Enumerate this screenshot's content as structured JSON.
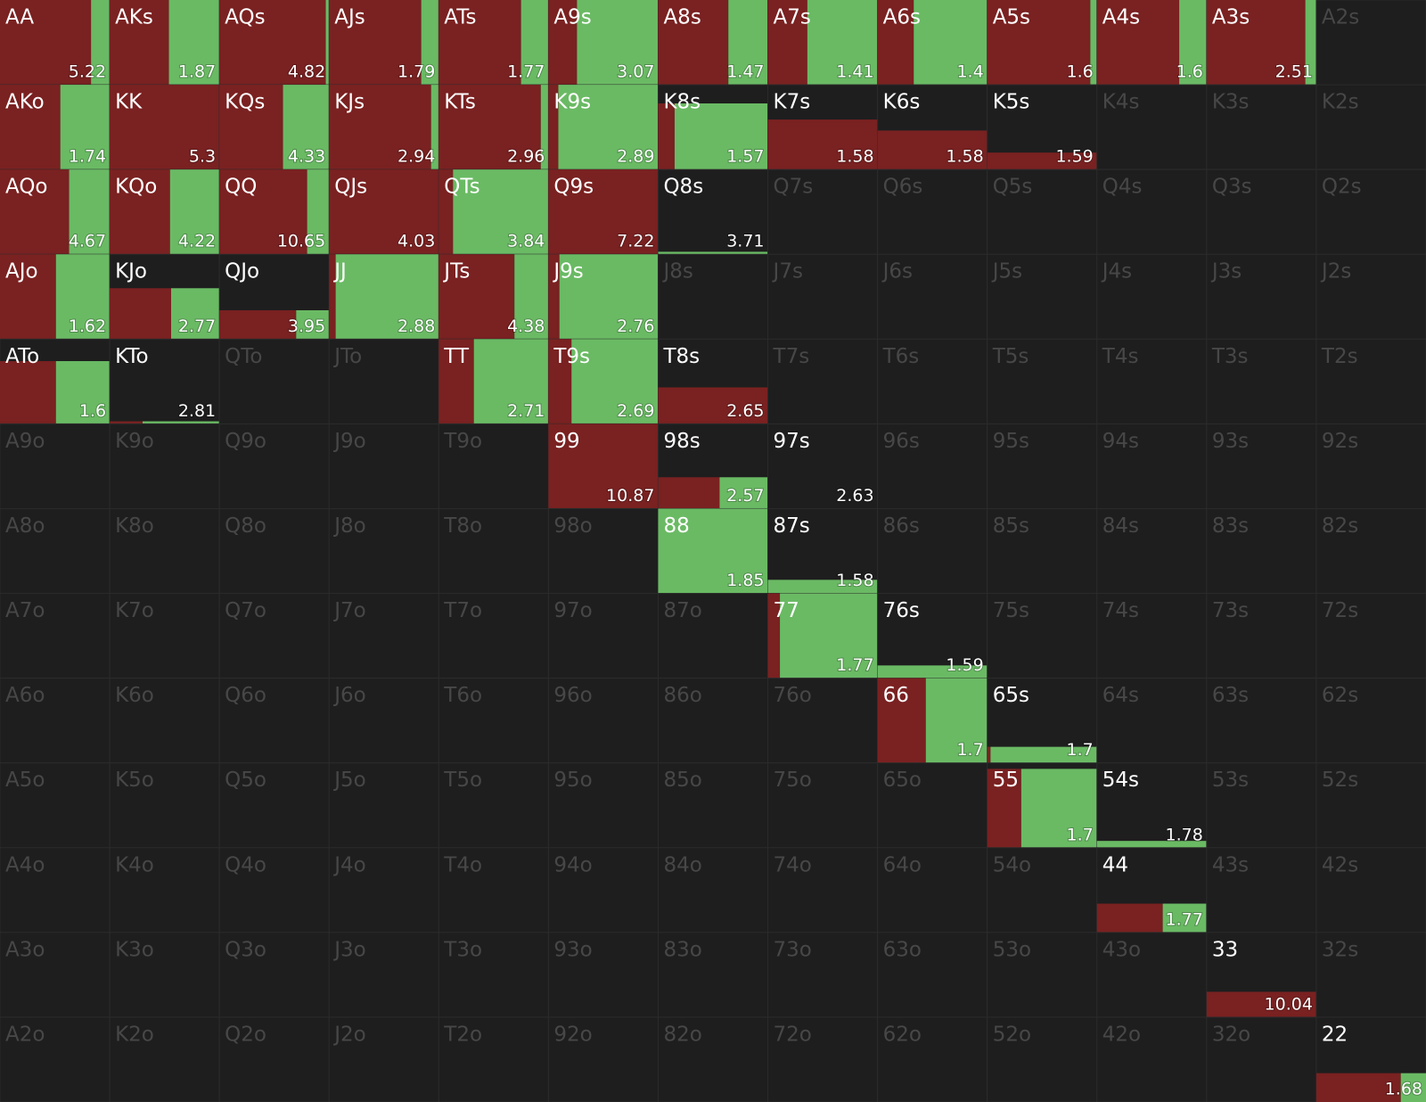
{
  "grid": {
    "rows": [
      [
        {
          "label": "AA",
          "value": 5.22,
          "height": 1,
          "red": 0.83
        },
        {
          "label": "AKs",
          "value": 1.87,
          "height": 1,
          "red": 0.54
        },
        {
          "label": "AQs",
          "value": 4.82,
          "height": 1,
          "red": 0.97
        },
        {
          "label": "AJs",
          "value": 1.79,
          "height": 1,
          "red": 0.84
        },
        {
          "label": "ATs",
          "value": 1.77,
          "height": 1,
          "red": 0.75
        },
        {
          "label": "A9s",
          "value": 3.07,
          "height": 1,
          "red": 0.26
        },
        {
          "label": "A8s",
          "value": 1.47,
          "height": 1,
          "red": 0.64
        },
        {
          "label": "A7s",
          "value": 1.41,
          "height": 1,
          "red": 0.36
        },
        {
          "label": "A6s",
          "value": 1.4,
          "height": 1,
          "red": 0.33
        },
        {
          "label": "A5s",
          "value": 1.6,
          "height": 1,
          "red": 0.94
        },
        {
          "label": "A4s",
          "value": 1.6,
          "height": 1,
          "red": 0.75
        },
        {
          "label": "A3s",
          "value": 2.51,
          "height": 1,
          "red": 0.9
        },
        {
          "label": "A2s"
        }
      ],
      [
        {
          "label": "AKo",
          "value": 1.74,
          "height": 1,
          "red": 0.55
        },
        {
          "label": "KK",
          "value": 5.3,
          "height": 1,
          "red": 1
        },
        {
          "label": "KQs",
          "value": 4.33,
          "height": 1,
          "red": 0.58
        },
        {
          "label": "KJs",
          "value": 2.94,
          "height": 1,
          "red": 0.93
        },
        {
          "label": "KTs",
          "value": 2.96,
          "height": 1,
          "red": 0.93
        },
        {
          "label": "K9s",
          "value": 2.89,
          "height": 1,
          "red": 0.09
        },
        {
          "label": "K8s",
          "value": 1.57,
          "height": 0.78,
          "red": 0.15
        },
        {
          "label": "K7s",
          "value": 1.58,
          "height": 0.59,
          "red": 1
        },
        {
          "label": "K6s",
          "value": 1.58,
          "height": 0.46,
          "red": 1
        },
        {
          "label": "K5s",
          "value": 1.59,
          "height": 0.2,
          "red": 1
        },
        {
          "label": "K4s"
        },
        {
          "label": "K3s"
        },
        {
          "label": "K2s"
        }
      ],
      [
        {
          "label": "AQo",
          "value": 4.67,
          "height": 1,
          "red": 0.63
        },
        {
          "label": "KQo",
          "value": 4.22,
          "height": 1,
          "red": 0.55
        },
        {
          "label": "QQ",
          "value": 10.65,
          "height": 1,
          "red": 0.8
        },
        {
          "label": "QJs",
          "value": 4.03,
          "height": 1,
          "red": 1
        },
        {
          "label": "QTs",
          "value": 3.84,
          "height": 1,
          "red": 0.13
        },
        {
          "label": "Q9s",
          "value": 7.22,
          "height": 1,
          "red": 1
        },
        {
          "label": "Q8s",
          "value": 3.71,
          "height": 0.03,
          "red": 0
        },
        {
          "label": "Q7s"
        },
        {
          "label": "Q6s"
        },
        {
          "label": "Q5s"
        },
        {
          "label": "Q4s"
        },
        {
          "label": "Q3s"
        },
        {
          "label": "Q2s"
        }
      ],
      [
        {
          "label": "AJo",
          "value": 1.62,
          "height": 1,
          "red": 0.51
        },
        {
          "label": "KJo",
          "value": 2.77,
          "height": 0.6,
          "red": 0.56
        },
        {
          "label": "QJo",
          "value": 3.95,
          "height": 0.34,
          "red": 0.7
        },
        {
          "label": "JJ",
          "value": 2.88,
          "height": 1,
          "red": 0.06
        },
        {
          "label": "JTs",
          "value": 4.38,
          "height": 1,
          "red": 0.69
        },
        {
          "label": "J9s",
          "value": 2.76,
          "height": 1,
          "red": 0.1
        },
        {
          "label": "J8s"
        },
        {
          "label": "J7s"
        },
        {
          "label": "J6s"
        },
        {
          "label": "J5s"
        },
        {
          "label": "J4s"
        },
        {
          "label": "J3s"
        },
        {
          "label": "J2s"
        }
      ],
      [
        {
          "label": "ATo",
          "value": 1.6,
          "height": 0.74,
          "red": 0.51
        },
        {
          "label": "KTo",
          "value": 2.81,
          "height": 0.03,
          "red": 0.3
        },
        {
          "label": "QTo"
        },
        {
          "label": "JTo"
        },
        {
          "label": "TT",
          "value": 2.71,
          "height": 1,
          "red": 0.32
        },
        {
          "label": "T9s",
          "value": 2.69,
          "height": 1,
          "red": 0.21
        },
        {
          "label": "T8s",
          "value": 2.65,
          "height": 0.43,
          "red": 1
        },
        {
          "label": "T7s"
        },
        {
          "label": "T6s"
        },
        {
          "label": "T5s"
        },
        {
          "label": "T4s"
        },
        {
          "label": "T3s"
        },
        {
          "label": "T2s"
        }
      ],
      [
        {
          "label": "A9o"
        },
        {
          "label": "K9o"
        },
        {
          "label": "Q9o"
        },
        {
          "label": "J9o"
        },
        {
          "label": "T9o"
        },
        {
          "label": "99",
          "value": 10.87,
          "height": 1,
          "red": 1
        },
        {
          "label": "98s",
          "value": 2.57,
          "height": 0.37,
          "red": 0.56
        },
        {
          "label": "97s",
          "value": 2.63
        },
        {
          "label": "96s"
        },
        {
          "label": "95s"
        },
        {
          "label": "94s"
        },
        {
          "label": "93s"
        },
        {
          "label": "92s"
        }
      ],
      [
        {
          "label": "A8o"
        },
        {
          "label": "K8o"
        },
        {
          "label": "Q8o"
        },
        {
          "label": "J8o"
        },
        {
          "label": "T8o"
        },
        {
          "label": "98o"
        },
        {
          "label": "88",
          "value": 1.85,
          "height": 1,
          "red": 0
        },
        {
          "label": "87s",
          "value": 1.58,
          "height": 0.16,
          "red": 0
        },
        {
          "label": "86s"
        },
        {
          "label": "85s"
        },
        {
          "label": "84s"
        },
        {
          "label": "83s"
        },
        {
          "label": "82s"
        }
      ],
      [
        {
          "label": "A7o"
        },
        {
          "label": "K7o"
        },
        {
          "label": "Q7o"
        },
        {
          "label": "J7o"
        },
        {
          "label": "T7o"
        },
        {
          "label": "97o"
        },
        {
          "label": "87o"
        },
        {
          "label": "77",
          "value": 1.77,
          "height": 1,
          "red": 0.11
        },
        {
          "label": "76s",
          "value": 1.59,
          "height": 0.15,
          "red": 0
        },
        {
          "label": "75s"
        },
        {
          "label": "74s"
        },
        {
          "label": "73s"
        },
        {
          "label": "72s"
        }
      ],
      [
        {
          "label": "A6o"
        },
        {
          "label": "K6o"
        },
        {
          "label": "Q6o"
        },
        {
          "label": "J6o"
        },
        {
          "label": "T6o"
        },
        {
          "label": "96o"
        },
        {
          "label": "86o"
        },
        {
          "label": "76o"
        },
        {
          "label": "66",
          "value": 1.7,
          "height": 1,
          "red": 0.44
        },
        {
          "label": "65s",
          "value": 1.7,
          "height": 0.19,
          "red": 0.03
        },
        {
          "label": "64s"
        },
        {
          "label": "63s"
        },
        {
          "label": "62s"
        }
      ],
      [
        {
          "label": "A5o"
        },
        {
          "label": "K5o"
        },
        {
          "label": "Q5o"
        },
        {
          "label": "J5o"
        },
        {
          "label": "T5o"
        },
        {
          "label": "95o"
        },
        {
          "label": "85o"
        },
        {
          "label": "75o"
        },
        {
          "label": "65o"
        },
        {
          "label": "55",
          "value": 1.7,
          "height": 0.93,
          "red": 0.31
        },
        {
          "label": "54s",
          "value": 1.78,
          "height": 0.08,
          "red": 0
        },
        {
          "label": "53s"
        },
        {
          "label": "52s"
        }
      ],
      [
        {
          "label": "A4o"
        },
        {
          "label": "K4o"
        },
        {
          "label": "Q4o"
        },
        {
          "label": "J4o"
        },
        {
          "label": "T4o"
        },
        {
          "label": "94o"
        },
        {
          "label": "84o"
        },
        {
          "label": "74o"
        },
        {
          "label": "64o"
        },
        {
          "label": "54o"
        },
        {
          "label": "44",
          "value": 1.77,
          "height": 0.34,
          "red": 0.6
        },
        {
          "label": "43s"
        },
        {
          "label": "42s"
        }
      ],
      [
        {
          "label": "A3o"
        },
        {
          "label": "K3o"
        },
        {
          "label": "Q3o"
        },
        {
          "label": "J3o"
        },
        {
          "label": "T3o"
        },
        {
          "label": "93o"
        },
        {
          "label": "83o"
        },
        {
          "label": "73o"
        },
        {
          "label": "63o"
        },
        {
          "label": "53o"
        },
        {
          "label": "43o"
        },
        {
          "label": "33",
          "value": 10.04,
          "height": 0.3,
          "red": 1
        },
        {
          "label": "32s"
        }
      ],
      [
        {
          "label": "A2o"
        },
        {
          "label": "K2o"
        },
        {
          "label": "Q2o"
        },
        {
          "label": "J2o"
        },
        {
          "label": "T2o"
        },
        {
          "label": "92o"
        },
        {
          "label": "82o"
        },
        {
          "label": "72o"
        },
        {
          "label": "62o"
        },
        {
          "label": "52o"
        },
        {
          "label": "42o"
        },
        {
          "label": "32o"
        },
        {
          "label": "22",
          "value": 1.68,
          "height": 0.34,
          "red": 0.77
        }
      ]
    ]
  }
}
